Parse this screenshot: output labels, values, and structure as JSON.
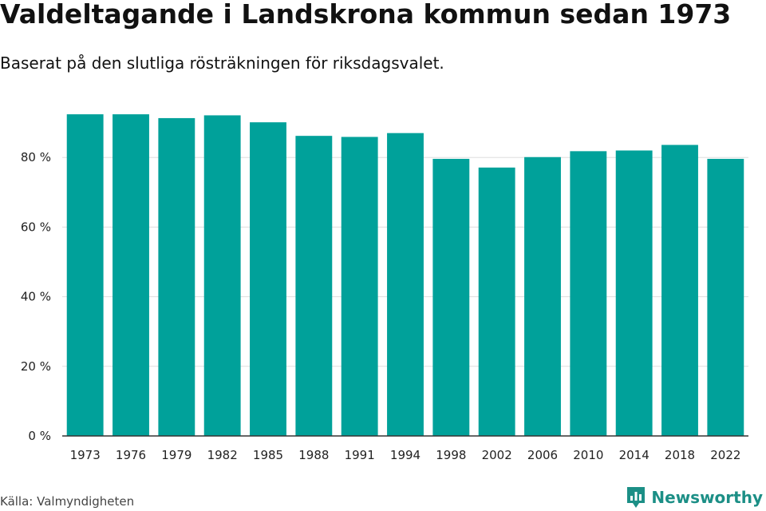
{
  "header": {
    "title": "Valdeltagande i Landskrona kommun sedan 1973",
    "subtitle": "Baserat på den slutliga rösträkningen för riksdagsvalet."
  },
  "footer": {
    "source": "Källa: Valmyndigheten",
    "brand": "Newsworthy"
  },
  "colors": {
    "bar": "#00a19a",
    "grid": "#dddddd",
    "axis": "#333333",
    "brand": "#1c8f86"
  },
  "chart_data": {
    "type": "bar",
    "title": "Valdeltagande i Landskrona kommun sedan 1973",
    "subtitle": "Baserat på den slutliga rösträkningen för riksdagsvalet.",
    "xlabel": "",
    "ylabel": "",
    "categories": [
      "1973",
      "1976",
      "1979",
      "1982",
      "1985",
      "1988",
      "1991",
      "1994",
      "1998",
      "2002",
      "2006",
      "2010",
      "2014",
      "2018",
      "2022"
    ],
    "values": [
      92.4,
      92.4,
      91.3,
      92.1,
      90.1,
      86.2,
      85.9,
      87.0,
      79.6,
      77.1,
      80.1,
      81.8,
      82.0,
      83.6,
      79.6
    ],
    "ylim": [
      0,
      100
    ],
    "yticks": [
      0,
      20,
      40,
      60,
      80
    ],
    "ytick_labels": [
      "0 %",
      "20 %",
      "40 %",
      "60 %",
      "80 %"
    ],
    "grid": true,
    "legend": "none"
  }
}
